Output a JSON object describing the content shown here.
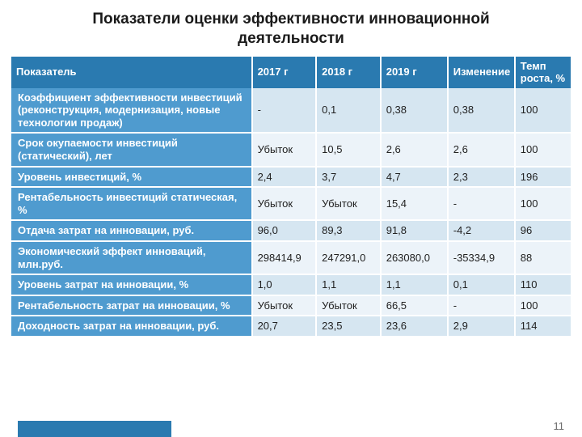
{
  "title": "Показатели оценки эффективности инновационной деятельности",
  "table": {
    "columns": [
      "Показатель",
      "2017 г",
      "2018 г",
      "2019 г",
      "Изменение",
      "Темп роста, %"
    ],
    "rows": [
      [
        "Коэффициент эффективности инвестиций (реконструкция, модернизация, новые технологии продаж)",
        "-",
        "0,1",
        "0,38",
        "0,38",
        "100"
      ],
      [
        "Срок окупаемости инвестиций (статический), лет",
        "Убыток",
        "10,5",
        "2,6",
        "2,6",
        "100"
      ],
      [
        "Уровень инвестиций, %",
        "2,4",
        "3,7",
        "4,7",
        "2,3",
        "196"
      ],
      [
        "Рентабельность инвестиций статическая, %",
        "Убыток",
        "Убыток",
        "15,4",
        "-",
        "100"
      ],
      [
        "Отдача затрат на инновации, руб.",
        "96,0",
        "89,3",
        "91,8",
        "-4,2",
        "96"
      ],
      [
        "Экономический эффект инноваций, млн.руб.",
        "298414,9",
        "247291,0",
        "263080,0",
        "-35334,9",
        "88"
      ],
      [
        "Уровень затрат на инновации, %",
        "1,0",
        "1,1",
        "1,1",
        "0,1",
        "110"
      ],
      [
        "Рентабельность затрат на инновации, %",
        "Убыток",
        "Убыток",
        "66,5",
        "-",
        "100"
      ],
      [
        "Доходность затрат на инновации, руб.",
        "20,7",
        "23,5",
        "23,6",
        "2,9",
        "114"
      ]
    ],
    "header_bg": "#2a7ab0",
    "header_text": "#ffffff",
    "rowname_bg": "#4f9bcf",
    "rowname_text": "#ffffff",
    "row_bg": "#d6e6f1",
    "row_alt_bg": "#ecf3f9",
    "cell_text": "#222222",
    "border_color": "#ffffff",
    "font_size_header": 13,
    "font_size_cell": 13,
    "col_widths_pct": [
      43,
      11.5,
      11.5,
      12,
      12,
      10
    ]
  },
  "footer": {
    "accent_color": "#2a7ab0",
    "page_number": "11",
    "page_number_color": "#6b6b6b"
  }
}
